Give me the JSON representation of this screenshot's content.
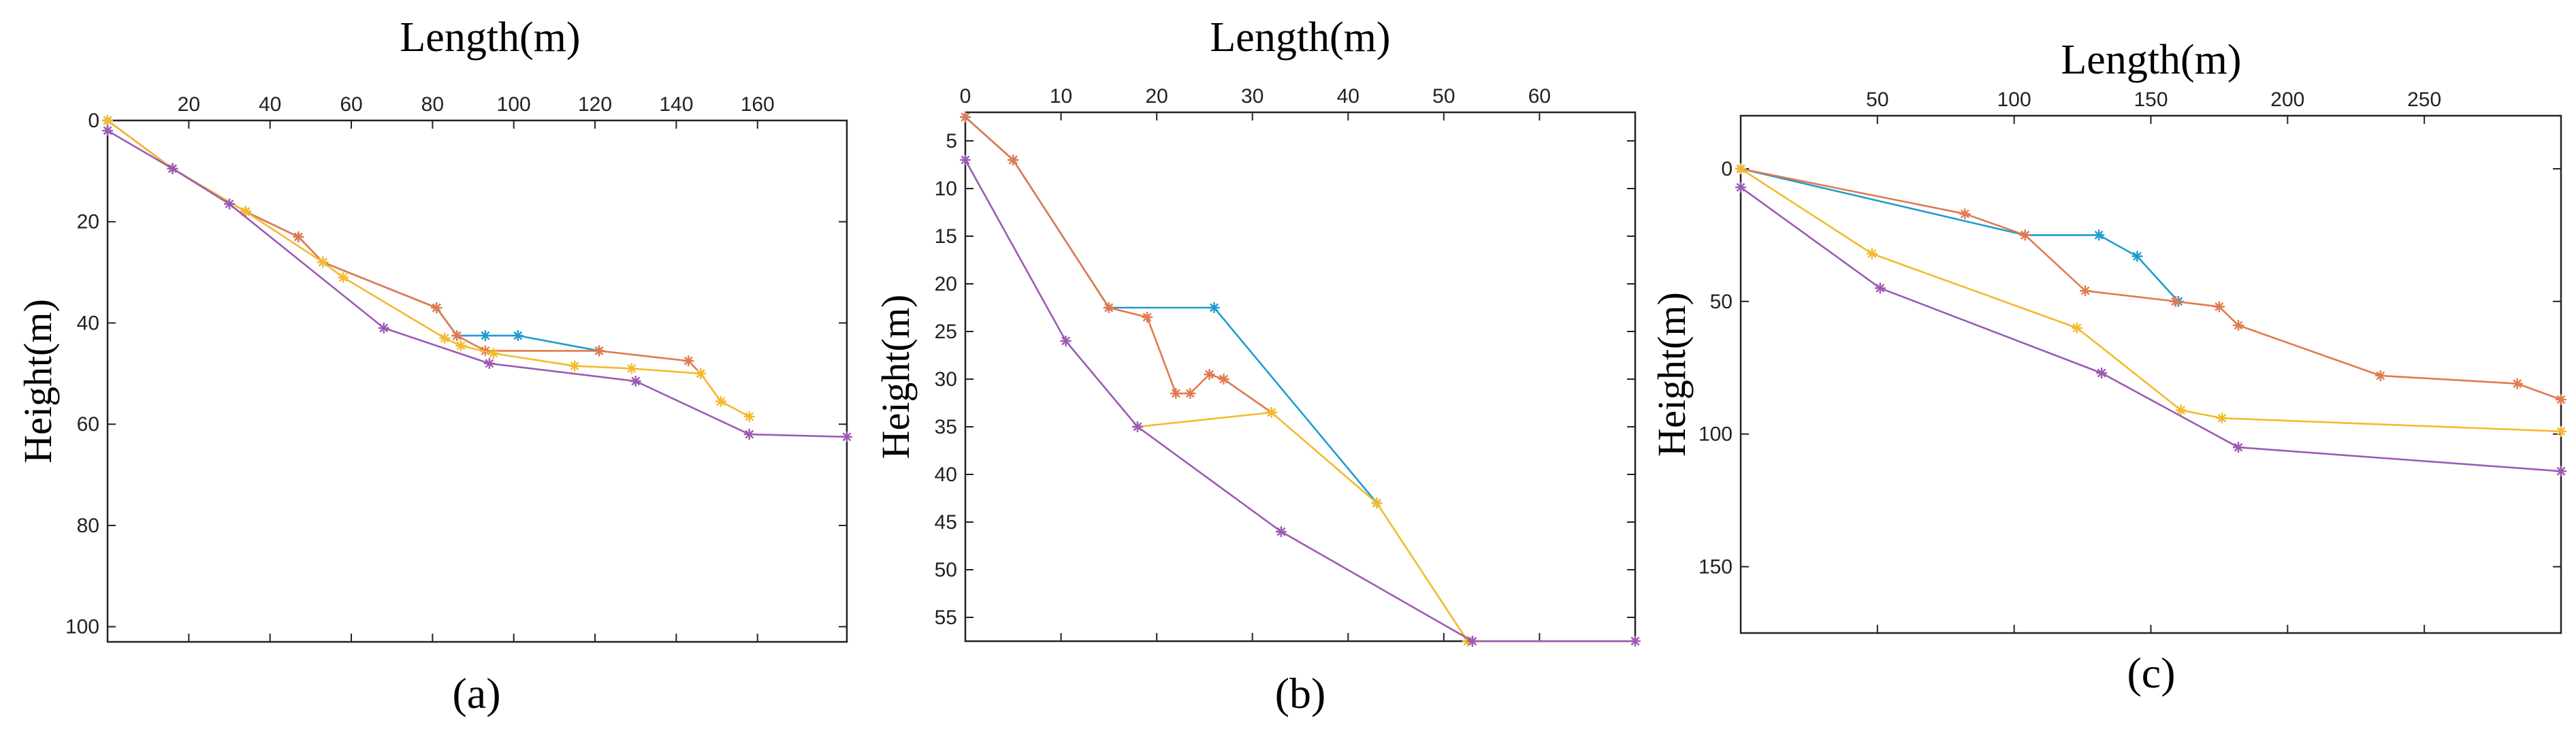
{
  "chart_data": [
    {
      "type": "line",
      "caption": "(a)",
      "xlabel": "Length(m)",
      "ylabel": "Height(m)",
      "xlim": [
        0,
        182
      ],
      "ylim": [
        0,
        103
      ],
      "y_inverted": true,
      "x_ticks": [
        20,
        40,
        60,
        80,
        100,
        120,
        140,
        160
      ],
      "y_ticks": [
        0,
        20,
        40,
        60,
        80,
        100
      ],
      "series": [
        {
          "name": "blue",
          "color": "#1f9bd1",
          "points": [
            [
              0,
              0
            ],
            [
              16,
              9.5
            ],
            [
              34,
              18
            ],
            [
              47,
              23
            ],
            [
              53,
              28
            ],
            [
              81,
              37
            ],
            [
              86,
              42.5
            ],
            [
              93,
              42.5
            ],
            [
              101,
              42.5
            ],
            [
              121,
              45.5
            ]
          ]
        },
        {
          "name": "orange",
          "color": "#e07a4f",
          "points": [
            [
              0,
              0
            ],
            [
              16,
              9.5
            ],
            [
              34,
              18
            ],
            [
              47,
              23
            ],
            [
              53,
              28
            ],
            [
              81,
              37
            ],
            [
              86,
              42.5
            ],
            [
              93,
              45.5
            ],
            [
              121,
              45.5
            ],
            [
              143,
              47.5
            ],
            [
              146,
              50
            ]
          ]
        },
        {
          "name": "yellow",
          "color": "#f4b92e",
          "points": [
            [
              0,
              0
            ],
            [
              16,
              9.5
            ],
            [
              34,
              18
            ],
            [
              53,
              28
            ],
            [
              58,
              31
            ],
            [
              83,
              43
            ],
            [
              87,
              44.5
            ],
            [
              95,
              46
            ],
            [
              115,
              48.5
            ],
            [
              129,
              49
            ],
            [
              146,
              50
            ],
            [
              151,
              55.5
            ],
            [
              158,
              58.5
            ]
          ]
        },
        {
          "name": "purple",
          "color": "#9b5bb5",
          "points": [
            [
              0,
              2
            ],
            [
              16,
              9.5
            ],
            [
              30,
              16.5
            ],
            [
              68,
              41
            ],
            [
              94,
              48
            ],
            [
              130,
              51.5
            ],
            [
              158,
              62
            ],
            [
              182,
              62.5
            ]
          ]
        }
      ]
    },
    {
      "type": "line",
      "caption": "(b)",
      "xlabel": "Length(m)",
      "ylabel": "Height(m)",
      "xlim": [
        0,
        70
      ],
      "ylim": [
        2,
        57.5
      ],
      "y_inverted": true,
      "x_ticks": [
        0,
        10,
        20,
        30,
        40,
        50,
        60
      ],
      "y_ticks": [
        5,
        10,
        15,
        20,
        25,
        30,
        35,
        40,
        45,
        50,
        55
      ],
      "series": [
        {
          "name": "blue",
          "color": "#1f9bd1",
          "points": [
            [
              0,
              2.5
            ],
            [
              5,
              7
            ],
            [
              15,
              22.5
            ],
            [
              26,
              22.5
            ],
            [
              43,
              43
            ]
          ]
        },
        {
          "name": "orange",
          "color": "#e07a4f",
          "points": [
            [
              0,
              2.5
            ],
            [
              5,
              7
            ],
            [
              15,
              22.5
            ],
            [
              19,
              23.5
            ],
            [
              22,
              31.5
            ],
            [
              23.5,
              31.5
            ],
            [
              25.5,
              29.5
            ],
            [
              27,
              30
            ],
            [
              32,
              33.5
            ]
          ]
        },
        {
          "name": "yellow",
          "color": "#f4b92e",
          "points": [
            [
              18,
              35
            ],
            [
              32,
              33.5
            ],
            [
              43,
              43
            ],
            [
              52.5,
              57.5
            ],
            [
              70,
              57.5
            ]
          ]
        },
        {
          "name": "purple",
          "color": "#9b5bb5",
          "points": [
            [
              0,
              7
            ],
            [
              10.5,
              26
            ],
            [
              18,
              35
            ],
            [
              33,
              46
            ],
            [
              53,
              57.5
            ],
            [
              70,
              57.5
            ]
          ]
        }
      ]
    },
    {
      "type": "line",
      "caption": "(c)",
      "xlabel": "Length(m)",
      "ylabel": "Height(m)",
      "xlim": [
        0,
        300
      ],
      "ylim": [
        -20,
        175
      ],
      "y_inverted": true,
      "x_ticks": [
        50,
        100,
        150,
        200,
        250
      ],
      "y_ticks": [
        0,
        50,
        100,
        150
      ],
      "series": [
        {
          "name": "blue",
          "color": "#1f9bd1",
          "points": [
            [
              0,
              0
            ],
            [
              104,
              25
            ],
            [
              131,
              25
            ],
            [
              145,
              33
            ],
            [
              160,
              50
            ]
          ]
        },
        {
          "name": "orange",
          "color": "#e07a4f",
          "points": [
            [
              0,
              0
            ],
            [
              82,
              17
            ],
            [
              104,
              25
            ],
            [
              126,
              46
            ],
            [
              159,
              50
            ],
            [
              175,
              52
            ],
            [
              182,
              59
            ],
            [
              234,
              78
            ],
            [
              284,
              81
            ],
            [
              300,
              87
            ]
          ]
        },
        {
          "name": "yellow",
          "color": "#f4b92e",
          "points": [
            [
              0,
              0
            ],
            [
              48,
              32
            ],
            [
              123,
              60
            ],
            [
              161,
              91
            ],
            [
              176,
              94
            ],
            [
              300,
              99
            ]
          ]
        },
        {
          "name": "purple",
          "color": "#9b5bb5",
          "points": [
            [
              0,
              7
            ],
            [
              51,
              45
            ],
            [
              132,
              77
            ],
            [
              182,
              105
            ],
            [
              300,
              114
            ]
          ]
        }
      ]
    }
  ]
}
